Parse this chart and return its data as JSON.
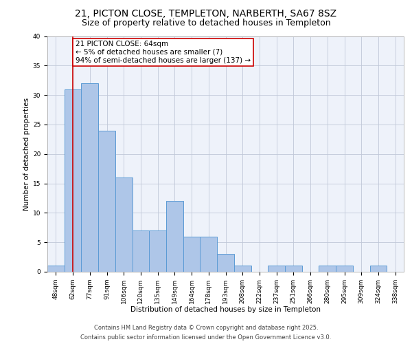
{
  "title1": "21, PICTON CLOSE, TEMPLETON, NARBERTH, SA67 8SZ",
  "title2": "Size of property relative to detached houses in Templeton",
  "xlabel": "Distribution of detached houses by size in Templeton",
  "ylabel": "Number of detached properties",
  "bin_labels": [
    "48sqm",
    "62sqm",
    "77sqm",
    "91sqm",
    "106sqm",
    "120sqm",
    "135sqm",
    "149sqm",
    "164sqm",
    "178sqm",
    "193sqm",
    "208sqm",
    "222sqm",
    "237sqm",
    "251sqm",
    "266sqm",
    "280sqm",
    "295sqm",
    "309sqm",
    "324sqm",
    "338sqm"
  ],
  "bar_values": [
    1,
    31,
    32,
    24,
    16,
    7,
    7,
    12,
    6,
    6,
    3,
    1,
    0,
    1,
    1,
    0,
    1,
    1,
    0,
    1,
    0
  ],
  "bar_color": "#aec6e8",
  "bar_edge_color": "#5b9bd5",
  "vline_x": 1,
  "vline_color": "#cc0000",
  "annotation_line1": "21 PICTON CLOSE: 64sqm",
  "annotation_line2": "← 5% of detached houses are smaller (7)",
  "annotation_line3": "94% of semi-detached houses are larger (137) →",
  "annotation_box_color": "#ffffff",
  "annotation_box_edge": "#cc0000",
  "ylim": [
    0,
    40
  ],
  "yticks": [
    0,
    5,
    10,
    15,
    20,
    25,
    30,
    35,
    40
  ],
  "footer1": "Contains HM Land Registry data © Crown copyright and database right 2025.",
  "footer2": "Contains public sector information licensed under the Open Government Licence v3.0.",
  "bg_color": "#eef2fa",
  "title1_fontsize": 10,
  "title2_fontsize": 9,
  "axis_label_fontsize": 7.5,
  "tick_fontsize": 6.5,
  "annotation_fontsize": 7.5,
  "footer_fontsize": 6
}
